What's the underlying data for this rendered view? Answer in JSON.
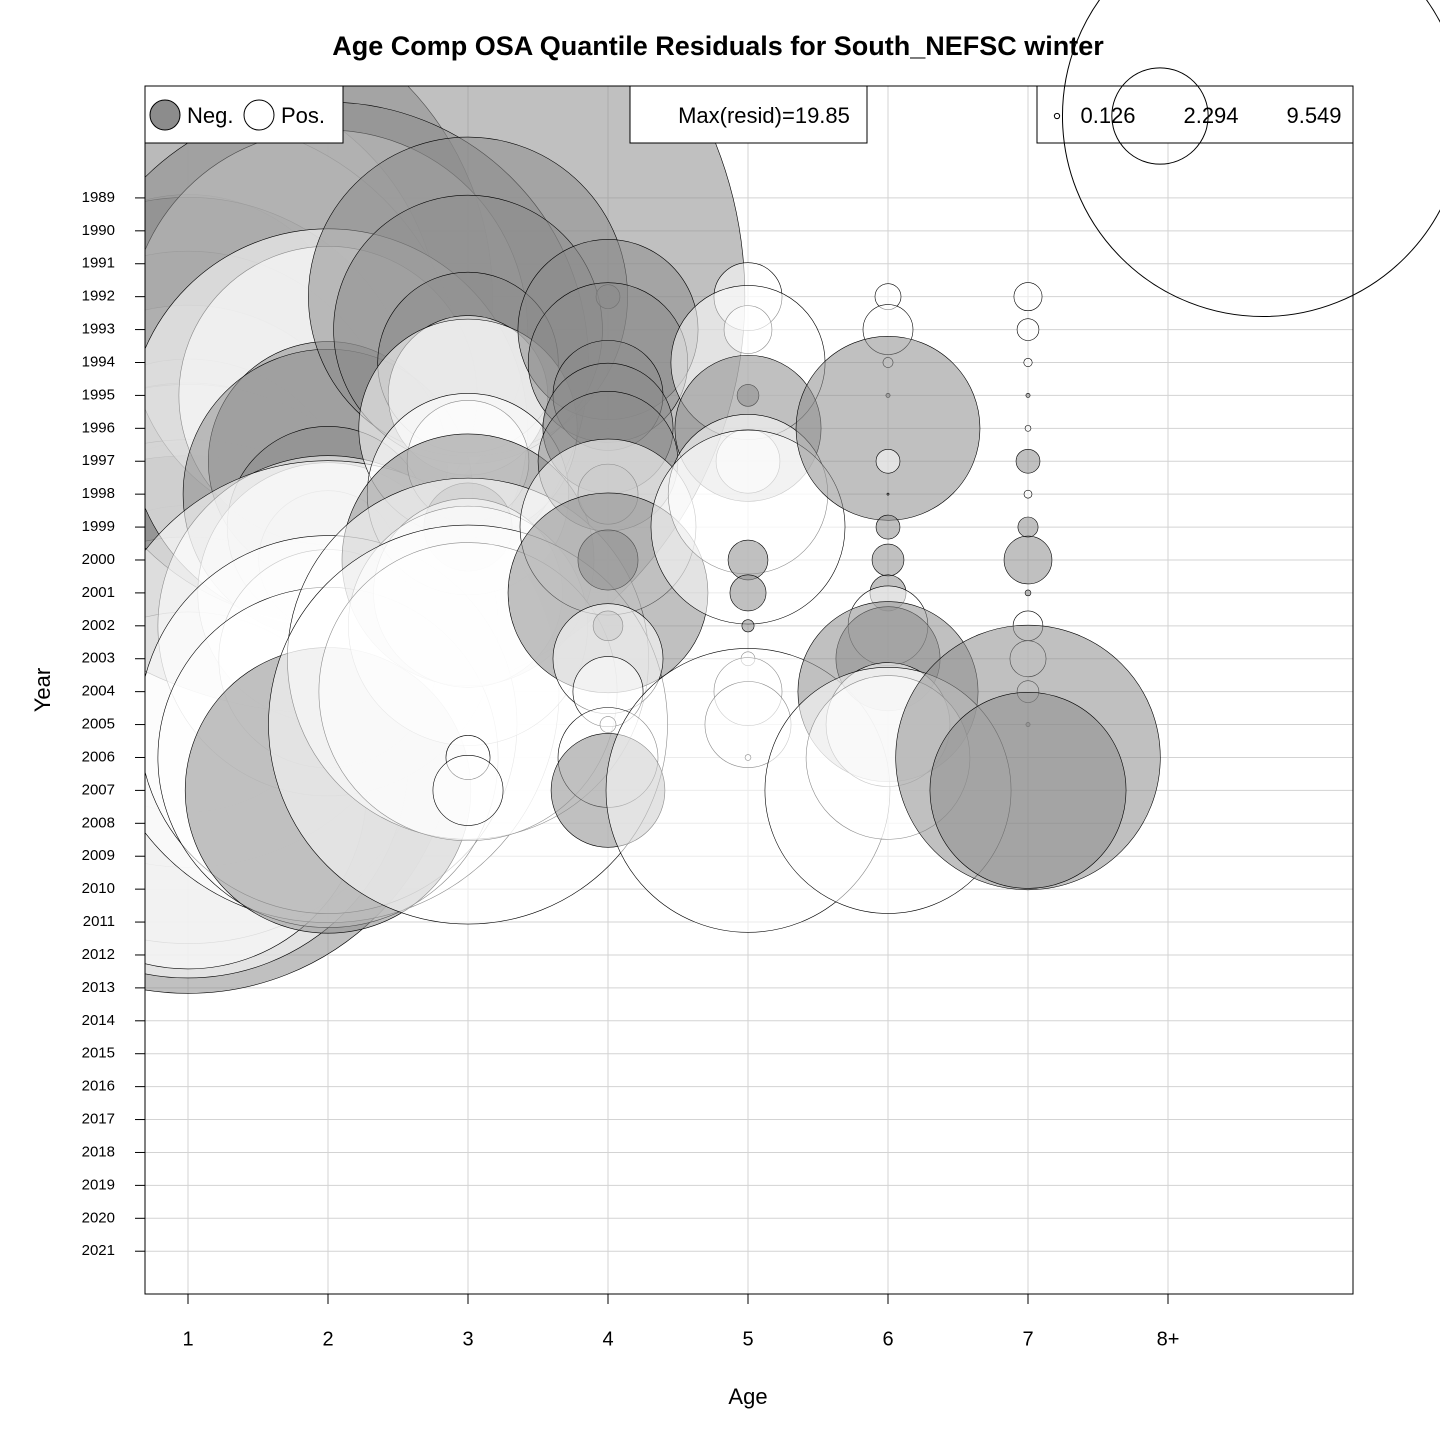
{
  "chart_data": {
    "type": "bubble",
    "title": "Age Comp OSA Quantile Residuals for South_NEFSC winter",
    "x_label": "Age",
    "y_label": "Year",
    "categories": [
      "1",
      "2",
      "3",
      "4",
      "5",
      "6",
      "7",
      "8+"
    ],
    "y": [
      1992,
      1993,
      1994,
      1995,
      1996,
      1997,
      1998,
      1999,
      2000,
      2001,
      2002,
      2003,
      2004,
      2005,
      2006,
      2007
    ],
    "values": [
      [
        -14.5,
        12,
        -8,
        13.2,
        -11,
        -10,
        9,
        8,
        -5.6,
        10,
        11.5,
        7.3,
        12,
        -12.8,
        10.5,
        8.5
      ],
      [
        -19.85,
        9.5,
        -12.4,
        7.1,
        9.5,
        -5.7,
        -6.9,
        -4.8,
        -3.3,
        6.2,
        8.1,
        5.2,
        11,
        9,
        8.1,
        -6.8
      ],
      [
        -7.6,
        -6.4,
        -4.3,
        3.8,
        5.2,
        2.9,
        4.8,
        -2.1,
        -6,
        4.5,
        5.7,
        8.6,
        7.1,
        9.5,
        1.05,
        1.67
      ],
      [
        -0.57,
        -4.29,
        -3.8,
        -2.62,
        -3.1,
        -3.33,
        -1.43,
        4.19,
        -1.43,
        -4.76,
        -0.71,
        2.62,
        1.67,
        0.38,
        2.38,
        -2.71
      ],
      [
        1.62,
        1.14,
        3.67,
        -0.52,
        -3.48,
        1.52,
        3.8,
        4.62,
        -0.95,
        -0.86,
        -0.29,
        0.33,
        1.62,
        2.05,
        0.14,
        6.76
      ],
      [
        0.62,
        1.19,
        0.24,
        -0.1,
        -4.38,
        0.57,
        -0.05,
        -0.57,
        -0.76,
        -0.86,
        1.9,
        -2.48,
        -4.29,
        2.95,
        3.9,
        5.86
      ],
      [
        0.67,
        0.52,
        0.2,
        -0.1,
        0.14,
        -0.57,
        0.19,
        -0.48,
        -1.14,
        -0.14,
        0.71,
        0.86,
        0.52,
        -0.1,
        -6.3,
        -4.67
      ],
      [
        null,
        null,
        null,
        null,
        null,
        null,
        null,
        null,
        null,
        null,
        null,
        null,
        null,
        null,
        null,
        null
      ]
    ],
    "ylim": [
      1985.6,
      2022.3
    ],
    "y_reversed": true,
    "yticks": [
      1989,
      1990,
      1991,
      1992,
      1993,
      1994,
      1995,
      1996,
      1997,
      1998,
      1999,
      2000,
      2001,
      2002,
      2003,
      2004,
      2005,
      2006,
      2007,
      2008,
      2009,
      2010,
      2011,
      2012,
      2013,
      2014,
      2015,
      2016,
      2017,
      2018,
      2019,
      2020,
      2021
    ],
    "grid": true,
    "legend_labels": [
      "Neg.",
      "Pos."
    ],
    "neg_color": "#8c8c8c",
    "pos_color": "#ffffff",
    "max_label": "Max(resid)=19.85",
    "size_legend": [
      0.126,
      2.294,
      9.549
    ]
  }
}
